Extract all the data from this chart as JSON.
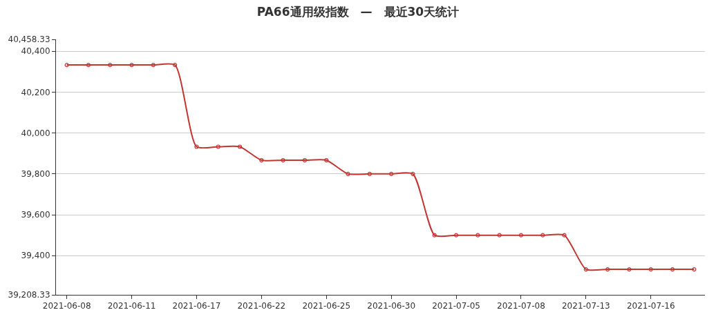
{
  "chart_data": {
    "type": "line",
    "title": "PA66通用级指数　—　最近30天统计",
    "categories": [
      "2021-06-08",
      null,
      null,
      "2021-06-11",
      null,
      null,
      "2021-06-17",
      null,
      null,
      "2021-06-22",
      null,
      null,
      "2021-06-25",
      null,
      null,
      "2021-06-30",
      null,
      null,
      "2021-07-05",
      null,
      null,
      "2021-07-08",
      null,
      null,
      "2021-07-13",
      null,
      null,
      "2021-07-16",
      null,
      null
    ],
    "series": [
      {
        "color": "#c23531",
        "values": [
          40333,
          40333,
          40333,
          40333,
          40333,
          40333,
          39933,
          39933,
          39933,
          39867,
          39867,
          39867,
          39867,
          39800,
          39800,
          39800,
          39800,
          39500,
          39500,
          39500,
          39500,
          39500,
          39500,
          39500,
          39333,
          39333,
          39333,
          39333,
          39333,
          39333
        ]
      }
    ],
    "ylim": [
      39208.33,
      40458.33
    ],
    "yticks": [
      {
        "value": 39208.33,
        "label": "39,208.33"
      },
      {
        "value": 39400,
        "label": "39,400"
      },
      {
        "value": 39600,
        "label": "39,600"
      },
      {
        "value": 39800,
        "label": "39,800"
      },
      {
        "value": 40000,
        "label": "40,000"
      },
      {
        "value": 40200,
        "label": "40,200"
      },
      {
        "value": 40400,
        "label": "40,400"
      },
      {
        "value": 40458.33,
        "label": "40,458.33"
      }
    ],
    "grid": "y",
    "marker": "circle",
    "line_style": "solid"
  }
}
